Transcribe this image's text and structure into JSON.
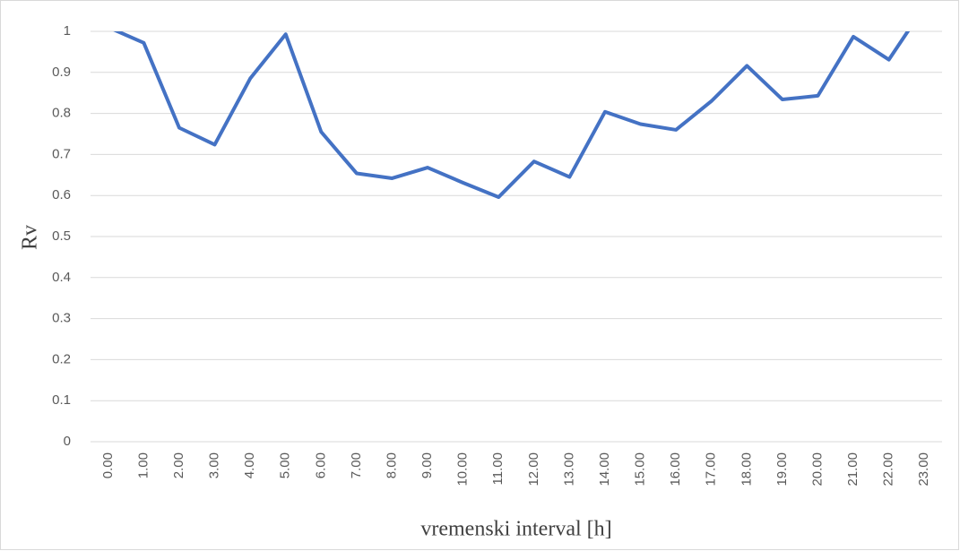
{
  "chart_data": {
    "type": "line",
    "x_label": "vremenski interval [h]",
    "y_label": "Rv",
    "categories": [
      "0.00",
      "1.00",
      "2.00",
      "3.00",
      "4.00",
      "5.00",
      "6.00",
      "7.00",
      "8.00",
      "9.00",
      "10.00",
      "11.00",
      "12.00",
      "13.00",
      "14.00",
      "15.00",
      "16.00",
      "17.00",
      "18.00",
      "19.00",
      "20.00",
      "21.00",
      "22.00",
      "23.00"
    ],
    "values": [
      1.01,
      0.972,
      0.765,
      0.724,
      0.885,
      0.993,
      0.755,
      0.654,
      0.642,
      0.668,
      0.631,
      0.596,
      0.683,
      0.645,
      0.804,
      0.774,
      0.76,
      0.83,
      0.916,
      0.834,
      0.843,
      0.987,
      0.931,
      1.06
    ],
    "color": "#4472c4",
    "ylim": [
      0,
      1
    ],
    "yticks": [
      0,
      0.1,
      0.2,
      0.3,
      0.4,
      0.5,
      0.6,
      0.7,
      0.8,
      0.9,
      1
    ],
    "grid": true
  }
}
